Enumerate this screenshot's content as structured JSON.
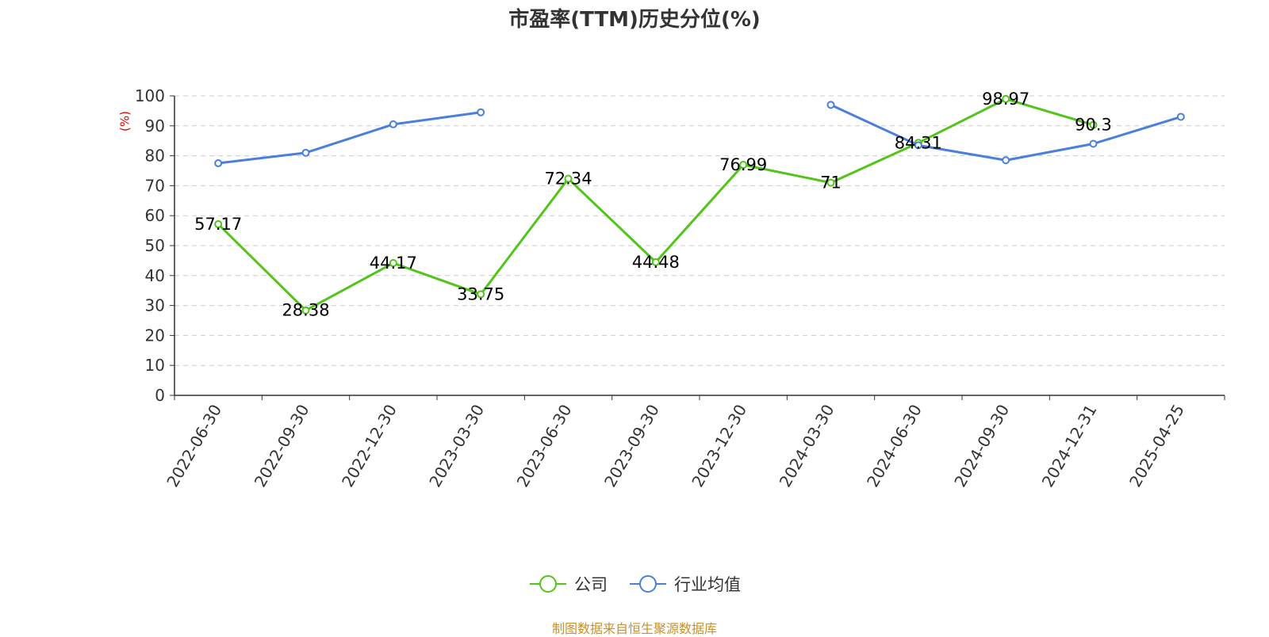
{
  "chart_data": {
    "type": "line",
    "title": "市盈率(TTM)历史分位(%)",
    "ylabel": "(%)",
    "xlabel": "",
    "ylim": [
      0,
      100
    ],
    "yticks": [
      0,
      10,
      20,
      30,
      40,
      50,
      60,
      70,
      80,
      90,
      100
    ],
    "categories": [
      "2022-06-30",
      "2022-09-30",
      "2022-12-30",
      "2023-03-30",
      "2023-06-30",
      "2023-09-30",
      "2023-12-30",
      "2024-03-30",
      "2024-06-30",
      "2024-09-30",
      "2024-12-31",
      "2025-04-25"
    ],
    "grid": true,
    "legend_position": "bottom-center",
    "series": [
      {
        "name": "公司",
        "color": "#52c41a",
        "labels": true,
        "values": [
          57.17,
          28.38,
          44.17,
          33.75,
          72.34,
          44.48,
          76.99,
          71,
          84.31,
          98.97,
          90.3,
          null
        ]
      },
      {
        "name": "行业均值",
        "color": "#4a7fdb",
        "labels": false,
        "values": [
          77.5,
          81,
          90.5,
          94.5,
          null,
          null,
          null,
          97,
          83.5,
          78.5,
          84,
          93
        ]
      }
    ]
  },
  "footer": {
    "source": "制图数据来自恒生聚源数据库"
  }
}
